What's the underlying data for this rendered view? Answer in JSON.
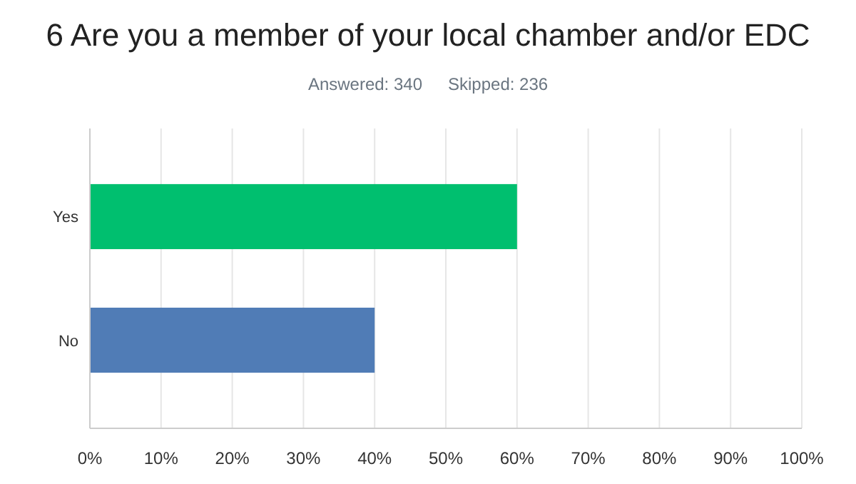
{
  "chart_data": {
    "type": "bar",
    "orientation": "horizontal",
    "title": "6 Are you a member of your local chamber and/or EDC",
    "annotations": [
      "Answered: 340",
      "Skipped: 236"
    ],
    "categories": [
      "Yes",
      "No"
    ],
    "values": [
      60,
      40
    ],
    "colors": [
      "#00bf6f",
      "#507cb6"
    ],
    "xlim": [
      0,
      100
    ],
    "xticks": [
      {
        "value": 0,
        "label": "0%"
      },
      {
        "value": 10,
        "label": "10%"
      },
      {
        "value": 20,
        "label": "20%"
      },
      {
        "value": 30,
        "label": "30%"
      },
      {
        "value": 40,
        "label": "40%"
      },
      {
        "value": 50,
        "label": "50%"
      },
      {
        "value": 60,
        "label": "60%"
      },
      {
        "value": 70,
        "label": "70%"
      },
      {
        "value": 80,
        "label": "80%"
      },
      {
        "value": 90,
        "label": "90%"
      },
      {
        "value": 100,
        "label": "100%"
      }
    ],
    "grid": "x"
  }
}
